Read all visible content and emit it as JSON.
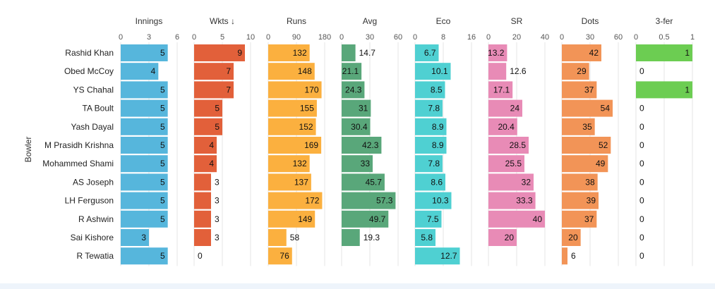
{
  "chart_data": {
    "type": "bar",
    "orientation": "horizontal",
    "ylabel": "Bowler",
    "categories": [
      "Rashid Khan",
      "Obed McCoy",
      "YS Chahal",
      "TA Boult",
      "Yash Dayal",
      "M Prasidh Krishna",
      "Mohammed Shami",
      "AS Joseph",
      "LH Ferguson",
      "R Ashwin",
      "Sai Kishore",
      "R Tewatia"
    ],
    "grid": true,
    "panels": [
      {
        "key": "innings",
        "title": "Innings",
        "color": "#56b6dc",
        "domain": [
          0,
          6
        ],
        "ticks": [
          "0",
          "3",
          "6"
        ],
        "values": [
          5,
          4,
          5,
          5,
          5,
          5,
          5,
          5,
          5,
          5,
          3,
          5
        ],
        "labels": [
          "5",
          "4",
          "5",
          "5",
          "5",
          "5",
          "5",
          "5",
          "5",
          "5",
          "3",
          "5"
        ]
      },
      {
        "key": "wkts",
        "title": "Wkts ↓",
        "color": "#e2603a",
        "domain": [
          0,
          10
        ],
        "ticks": [
          "0",
          "5",
          "10"
        ],
        "values": [
          9,
          7,
          7,
          5,
          5,
          4,
          4,
          3,
          3,
          3,
          3,
          0
        ],
        "labels": [
          "9",
          "7",
          "7",
          "5",
          "5",
          "4",
          "4",
          "3",
          "3",
          "3",
          "3",
          "0"
        ]
      },
      {
        "key": "runs",
        "title": "Runs",
        "color": "#fbb03f",
        "domain": [
          0,
          180
        ],
        "ticks": [
          "0",
          "90",
          "180"
        ],
        "values": [
          132,
          148,
          170,
          155,
          152,
          169,
          132,
          137,
          172,
          149,
          58,
          76
        ],
        "labels": [
          "132",
          "148",
          "170",
          "155",
          "152",
          "169",
          "132",
          "137",
          "172",
          "149",
          "58",
          "76"
        ]
      },
      {
        "key": "avg",
        "title": "Avg",
        "color": "#59a77a",
        "domain": [
          0,
          60
        ],
        "ticks": [
          "0",
          "30",
          "60"
        ],
        "values": [
          14.7,
          21.1,
          24.3,
          31,
          30.4,
          42.3,
          33,
          45.7,
          57.3,
          49.7,
          19.3,
          null
        ],
        "labels": [
          "14.7",
          "21.1",
          "24.3",
          "31",
          "30.4",
          "42.3",
          "33",
          "45.7",
          "57.3",
          "49.7",
          "19.3",
          ""
        ]
      },
      {
        "key": "eco",
        "title": "Eco",
        "color": "#4fd0d2",
        "domain": [
          0,
          16
        ],
        "ticks": [
          "0",
          "8",
          "16"
        ],
        "values": [
          6.7,
          10.1,
          8.5,
          7.8,
          8.9,
          8.9,
          7.8,
          8.6,
          10.3,
          7.5,
          5.8,
          12.7
        ],
        "labels": [
          "6.7",
          "10.1",
          "8.5",
          "7.8",
          "8.9",
          "8.9",
          "7.8",
          "8.6",
          "10.3",
          "7.5",
          "5.8",
          "12.7"
        ]
      },
      {
        "key": "sr",
        "title": "SR",
        "color": "#e88bb6",
        "domain": [
          0,
          40
        ],
        "ticks": [
          "0",
          "20",
          "40"
        ],
        "values": [
          13.2,
          12.6,
          17.1,
          24,
          20.4,
          28.5,
          25.5,
          32,
          33.3,
          40,
          20,
          null
        ],
        "labels": [
          "13.2",
          "12.6",
          "17.1",
          "24",
          "20.4",
          "28.5",
          "25.5",
          "32",
          "33.3",
          "40",
          "20",
          ""
        ]
      },
      {
        "key": "dots",
        "title": "Dots",
        "color": "#f29457",
        "domain": [
          0,
          60
        ],
        "ticks": [
          "0",
          "30",
          "60"
        ],
        "values": [
          42,
          29,
          37,
          54,
          35,
          52,
          49,
          38,
          39,
          37,
          20,
          6
        ],
        "labels": [
          "42",
          "29",
          "37",
          "54",
          "35",
          "52",
          "49",
          "38",
          "39",
          "37",
          "20",
          "6"
        ]
      },
      {
        "key": "threefer",
        "title": "3-fer",
        "color": "#6ccd52",
        "domain": [
          0,
          1
        ],
        "ticks": [
          "0",
          "0.5",
          "1"
        ],
        "values": [
          1,
          0,
          1,
          0,
          0,
          0,
          0,
          0,
          0,
          0,
          0,
          0
        ],
        "labels": [
          "1",
          "0",
          "1",
          "0",
          "0",
          "0",
          "0",
          "0",
          "0",
          "0",
          "0",
          "0"
        ]
      }
    ]
  }
}
